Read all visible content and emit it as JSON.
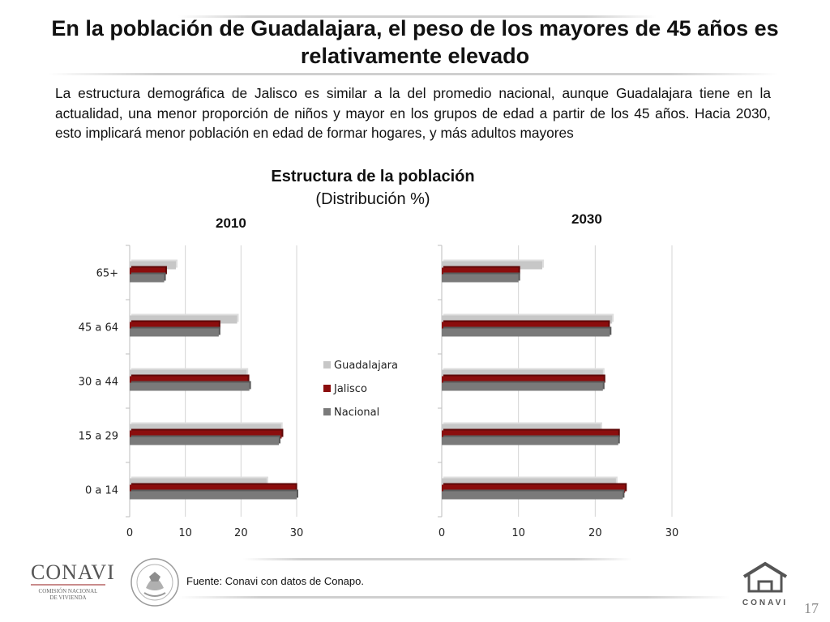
{
  "title": "En la población de Guadalajara, el peso de los mayores de 45 años es relativamente elevado",
  "body_text": "La estructura demográfica de Jalisco es similar a la del promedio nacional, aunque Guadalajara tiene en la actualidad, una menor proporción de niños y mayor  en los grupos de edad a partir de los 45 años. Hacia 2030, esto implicará menor población en edad de formar hogares, y más adultos mayores",
  "chart_title": "Estructura de la población",
  "chart_subtitle": "(Distribución %)",
  "source": "Fuente: Conavi con datos de Conapo.",
  "page_number": "17",
  "logos": {
    "conavi_name": "CONAVI",
    "conavi_subtitle_1": "COMISIÓN NACIONAL",
    "conavi_subtitle_2": "DE VIVIENDA",
    "right_logo_text": "CONAVI"
  },
  "colors": {
    "guadalajara": "#c7c7c7",
    "jalisco": "#8b0d0d",
    "nacional": "#7a7a7a"
  },
  "chart_data": [
    {
      "type": "bar",
      "orientation": "horizontal",
      "title": "2010",
      "categories": [
        "65+",
        "45 a 64",
        "30 a 44",
        "15 a 29",
        "0 a 14"
      ],
      "series": [
        {
          "name": "Guadalajara",
          "values": [
            8.3,
            19.3,
            21.0,
            27.2,
            24.6
          ]
        },
        {
          "name": "Jalisco",
          "values": [
            6.4,
            16.0,
            21.2,
            27.3,
            29.8
          ]
        },
        {
          "name": "Nacional",
          "values": [
            6.2,
            16.0,
            21.5,
            26.8,
            30.0
          ]
        }
      ],
      "xlim": [
        0,
        30
      ],
      "xticks": [
        0,
        10,
        20,
        30
      ],
      "grid": true,
      "legend": [
        "Guadalajara",
        "Jalisco",
        "Nacional"
      ],
      "legend_position": "right"
    },
    {
      "type": "bar",
      "orientation": "horizontal",
      "title": "2030",
      "categories": [
        "65+",
        "45 a 64",
        "30 a 44",
        "15 a 29",
        "0 a 14"
      ],
      "series": [
        {
          "name": "Guadalajara",
          "values": [
            13.1,
            22.2,
            21.0,
            20.7,
            22.7
          ]
        },
        {
          "name": "Jalisco",
          "values": [
            10.0,
            21.7,
            21.1,
            23.0,
            23.9
          ]
        },
        {
          "name": "Nacional",
          "values": [
            10.0,
            21.9,
            21.0,
            23.0,
            23.6
          ]
        }
      ],
      "xlim": [
        0,
        30
      ],
      "xticks": [
        0,
        10,
        20,
        30
      ],
      "grid": true
    }
  ]
}
